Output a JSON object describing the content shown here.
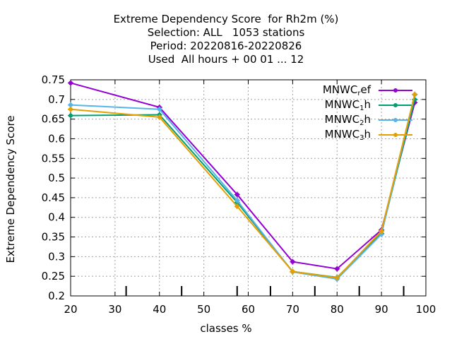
{
  "title": {
    "line1": "Extreme Dependency Score  for Rh2m (%)",
    "line2": "Selection: ALL   1053 stations",
    "line3": "Period: 20220816-20220826",
    "line4": "Used  All hours + 00 01 ... 12"
  },
  "chart_data": {
    "type": "line",
    "xlabel": "classes %",
    "ylabel": "Extreme Dependency Score",
    "xlim": [
      20,
      100
    ],
    "ylim": [
      0.2,
      0.75
    ],
    "xticks": [
      "20",
      "30",
      "40",
      "50",
      "60",
      "70",
      "80",
      "90",
      "100"
    ],
    "yticks": [
      "0.2",
      "0.25",
      "0.3",
      "0.35",
      "0.4",
      "0.45",
      "0.5",
      "0.55",
      "0.6",
      "0.65",
      "0.7",
      "0.75"
    ],
    "grid": true,
    "legend_position": "top-right",
    "class_markers": [
      32.5,
      45,
      57.5,
      65,
      75,
      85,
      95
    ],
    "series": [
      {
        "name": "MNWC_ref",
        "legend_main": "MNWC",
        "legend_sub": "r",
        "legend_tail": "ef",
        "color": "#9400d3",
        "x": [
          20,
          40,
          57.5,
          70,
          80,
          90,
          97.5
        ],
        "y": [
          0.742,
          0.68,
          0.458,
          0.287,
          0.269,
          0.368,
          0.692
        ]
      },
      {
        "name": "MNWC_1h",
        "legend_main": "MNWC",
        "legend_sub": "1",
        "legend_tail": "h",
        "color": "#009e73",
        "x": [
          20,
          40,
          57.5,
          70,
          80,
          90,
          97.5
        ],
        "y": [
          0.659,
          0.661,
          0.438,
          0.262,
          0.247,
          0.359,
          0.7
        ]
      },
      {
        "name": "MNWC_2h",
        "legend_main": "MNWC",
        "legend_sub": "2",
        "legend_tail": "h",
        "color": "#56b4e9",
        "x": [
          20,
          40,
          57.5,
          70,
          80,
          90,
          97.5
        ],
        "y": [
          0.686,
          0.675,
          0.443,
          0.261,
          0.243,
          0.357,
          0.712
        ]
      },
      {
        "name": "MNWC_3h",
        "legend_main": "MNWC",
        "legend_sub": "3",
        "legend_tail": "h",
        "color": "#e69f00",
        "x": [
          20,
          40,
          57.5,
          70,
          80,
          90,
          97.5
        ],
        "y": [
          0.675,
          0.655,
          0.428,
          0.262,
          0.246,
          0.365,
          0.713
        ]
      }
    ]
  }
}
